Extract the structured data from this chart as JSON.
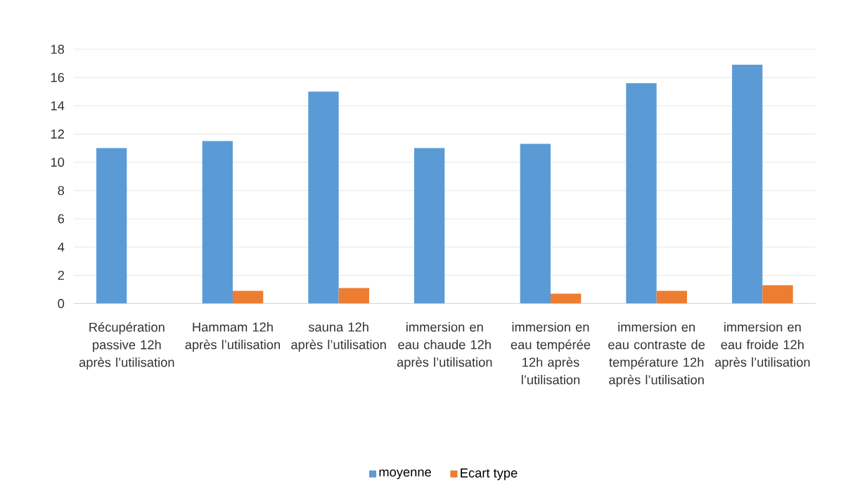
{
  "chart_data": {
    "type": "bar",
    "categories": [
      "Récupération passive 12h après l’utilisation",
      "Hammam 12h après l’utilisation",
      "sauna 12h après l’utilisation",
      "immersion en eau chaude 12h après l’utilisation",
      "immersion en eau tempérée 12h après l’utilisation",
      "immersion en eau contraste de température 12h après l’utilisation",
      "immersion en eau froide 12h après l’utilisation"
    ],
    "series": [
      {
        "name": "moyenne",
        "color": "#5b9bd5",
        "values": [
          11,
          11.5,
          15,
          11,
          11.3,
          15.6,
          16.9
        ]
      },
      {
        "name": "Ecart type",
        "color": "#ed7d31",
        "values": [
          0,
          0.9,
          1.1,
          0,
          0.7,
          0.9,
          1.3
        ]
      }
    ],
    "ylim": [
      0,
      18
    ],
    "yticks": [
      0,
      2,
      4,
      6,
      8,
      10,
      12,
      14,
      16,
      18
    ],
    "grid": "y",
    "legend": "bottom"
  }
}
